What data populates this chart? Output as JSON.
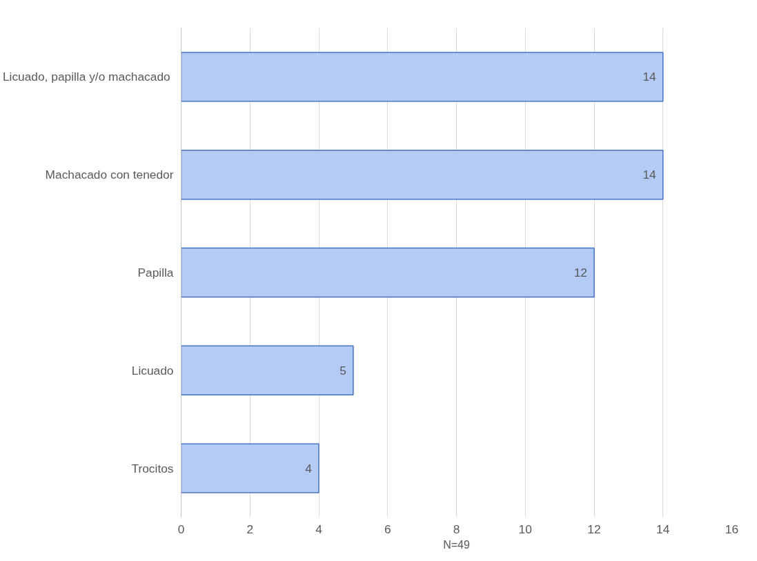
{
  "chart_data": {
    "type": "bar",
    "orientation": "horizontal",
    "xlabel": "N=49",
    "categories": [
      "Licuado,  papilla y/o machacado",
      "Machacado con tenedor",
      "Papilla",
      "Licuado",
      "Trocitos"
    ],
    "values": [
      14,
      14,
      12,
      5,
      4
    ],
    "color": "#b4cbf5",
    "xlim": [
      0,
      16
    ],
    "xticks": [
      0,
      2,
      4,
      6,
      8,
      10,
      12,
      14,
      16
    ],
    "grid": "x",
    "data_labels": true
  }
}
